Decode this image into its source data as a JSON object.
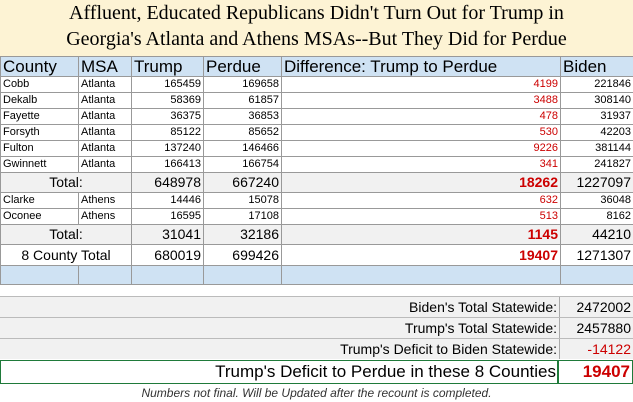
{
  "title": {
    "line1": "Affluent, Educated Republicans Didn't Turn Out for Trump in",
    "line2": "Georgia's Atlanta and Athens MSAs--But They Did for Perdue"
  },
  "headers": {
    "county": "County",
    "msa": "MSA",
    "trump": "Trump",
    "perdue": "Perdue",
    "difference": "Difference: Trump to Perdue",
    "biden": "Biden"
  },
  "atlanta_rows": [
    {
      "county": "Cobb",
      "msa": "Atlanta",
      "trump": "165459",
      "perdue": "169658",
      "diff": "4199",
      "biden": "221846"
    },
    {
      "county": "Dekalb",
      "msa": "Atlanta",
      "trump": "58369",
      "perdue": "61857",
      "diff": "3488",
      "biden": "308140"
    },
    {
      "county": "Fayette",
      "msa": "Atlanta",
      "trump": "36375",
      "perdue": "36853",
      "diff": "478",
      "biden": "31937"
    },
    {
      "county": "Forsyth",
      "msa": "Atlanta",
      "trump": "85122",
      "perdue": "85652",
      "diff": "530",
      "biden": "42203"
    },
    {
      "county": "Fulton",
      "msa": "Atlanta",
      "trump": "137240",
      "perdue": "146466",
      "diff": "9226",
      "biden": "381144"
    },
    {
      "county": "Gwinnett",
      "msa": "Atlanta",
      "trump": "166413",
      "perdue": "166754",
      "diff": "341",
      "biden": "241827"
    }
  ],
  "atlanta_total": {
    "label": "Total:",
    "trump": "648978",
    "perdue": "667240",
    "diff": "18262",
    "biden": "1227097"
  },
  "athens_rows": [
    {
      "county": "Clarke",
      "msa": "Athens",
      "trump": "14446",
      "perdue": "15078",
      "diff": "632",
      "biden": "36048"
    },
    {
      "county": "Oconee",
      "msa": "Athens",
      "trump": "16595",
      "perdue": "17108",
      "diff": "513",
      "biden": "8162"
    }
  ],
  "athens_total": {
    "label": "Total:",
    "trump": "31041",
    "perdue": "32186",
    "diff": "1145",
    "biden": "44210"
  },
  "grand_total": {
    "label": "8 County Total",
    "trump": "680019",
    "perdue": "699426",
    "diff": "19407",
    "biden": "1271307"
  },
  "summary": {
    "biden_statewide_label": "Biden's Total Statewide:",
    "biden_statewide": "2472002",
    "trump_statewide_label": "Trump's Total Statewide:",
    "trump_statewide": "2457880",
    "deficit_label": "Trump's Deficit to Biden Statewide:",
    "deficit": "-14122",
    "perdue_deficit_label": "Trump's Deficit to Perdue in these 8 Counties",
    "perdue_deficit": "19407"
  },
  "note": "Numbers not final. Will be Updated after the recount is completed.",
  "colors": {
    "header_bg": "#cfe2f3",
    "title_bg": "#fdf3d4",
    "red": "#cc0000",
    "border_green": "#1f7a3a"
  }
}
